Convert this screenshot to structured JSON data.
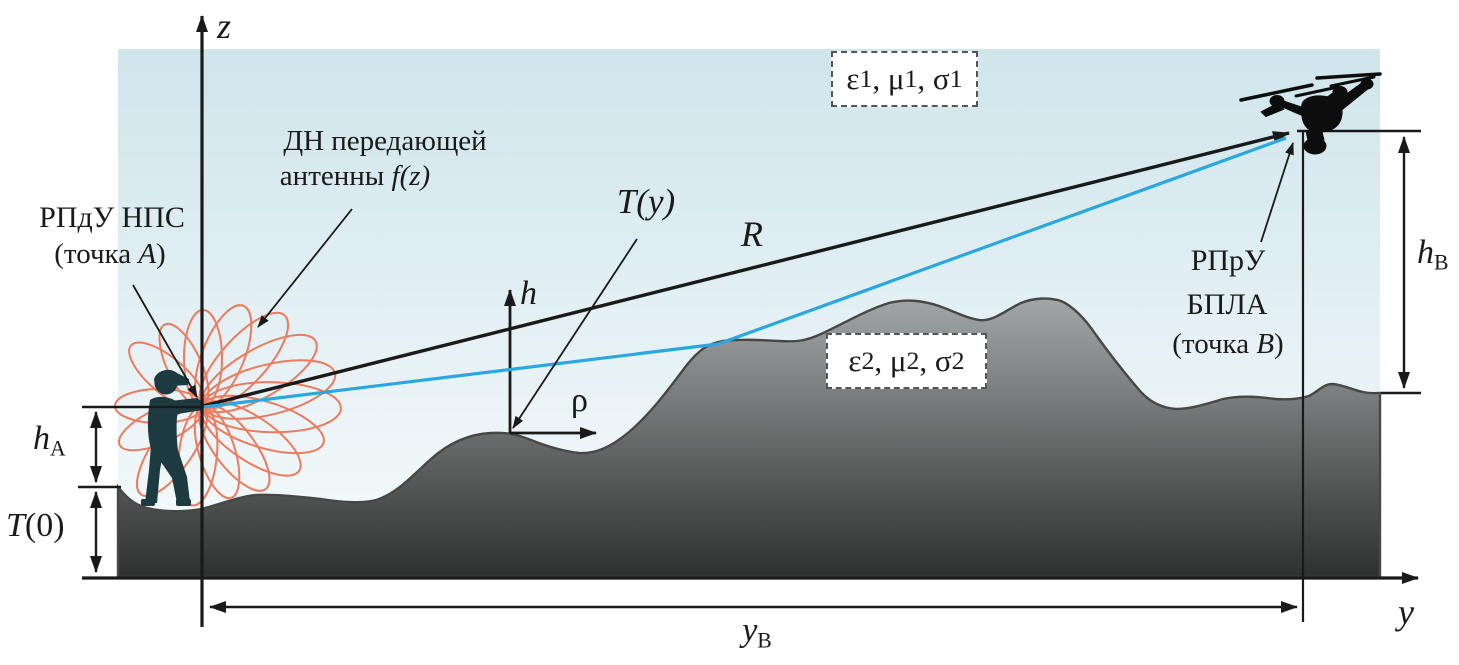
{
  "colors": {
    "sky_top": "#cfe5ec",
    "sky_bottom": "#f7fbfc",
    "terrain_top": "#a4a7a8",
    "terrain_bottom": "#2e2f2f",
    "terrain_stroke": "#474747",
    "ink": "#1a1a1a",
    "ray_blue": "#2aa7df",
    "pattern_salmon": "#ec7a5f",
    "person_fill": "#1d3a41",
    "drone_fill": "#0d0d0d",
    "box_border": "#555555",
    "box_bg": "#ffffff"
  },
  "axes": {
    "z": "z",
    "y": "y",
    "h": "h",
    "rho": "ρ"
  },
  "labels": {
    "antenna_pattern": {
      "line1": "ДН передающей",
      "line2_runs": [
        {
          "t": "антенны "
        },
        {
          "t": "f(z)",
          "i": true
        }
      ]
    },
    "transmitter": {
      "line1": "РПдУ НПС",
      "line2_runs": [
        {
          "t": "(точка "
        },
        {
          "t": "A",
          "i": true
        },
        {
          "t": ")"
        }
      ]
    },
    "receiver": {
      "line1": "РПрУ",
      "line2": "БПЛА",
      "line3_runs": [
        {
          "t": "(точка "
        },
        {
          "t": "B",
          "i": true
        },
        {
          "t": ")"
        }
      ]
    },
    "terrain_function_runs": [
      {
        "t": "T(y)",
        "i": true
      }
    ],
    "terrain_origin_runs": [
      {
        "t": "T",
        "i": true
      },
      {
        "t": "(0)"
      }
    ],
    "distance": "R",
    "medium1_runs": [
      {
        "t": "ε"
      },
      {
        "t": "1",
        "sub": true
      },
      {
        "t": ", μ"
      },
      {
        "t": "1",
        "sub": true
      },
      {
        "t": ", σ"
      },
      {
        "t": "1",
        "sub": true
      }
    ],
    "medium2_runs": [
      {
        "t": "ε"
      },
      {
        "t": "2",
        "sub": true
      },
      {
        "t": ", μ"
      },
      {
        "t": "2",
        "sub": true
      },
      {
        "t": ", σ"
      },
      {
        "t": "2",
        "sub": true
      }
    ],
    "height_a_runs": [
      {
        "t": "h",
        "i": true
      },
      {
        "t": "A",
        "sub": true
      }
    ],
    "height_b_runs": [
      {
        "t": "h",
        "i": true
      },
      {
        "t": "B",
        "sub": true
      }
    ],
    "y_b_runs": [
      {
        "t": "y",
        "i": true
      },
      {
        "t": "B",
        "sub": true
      }
    ]
  }
}
